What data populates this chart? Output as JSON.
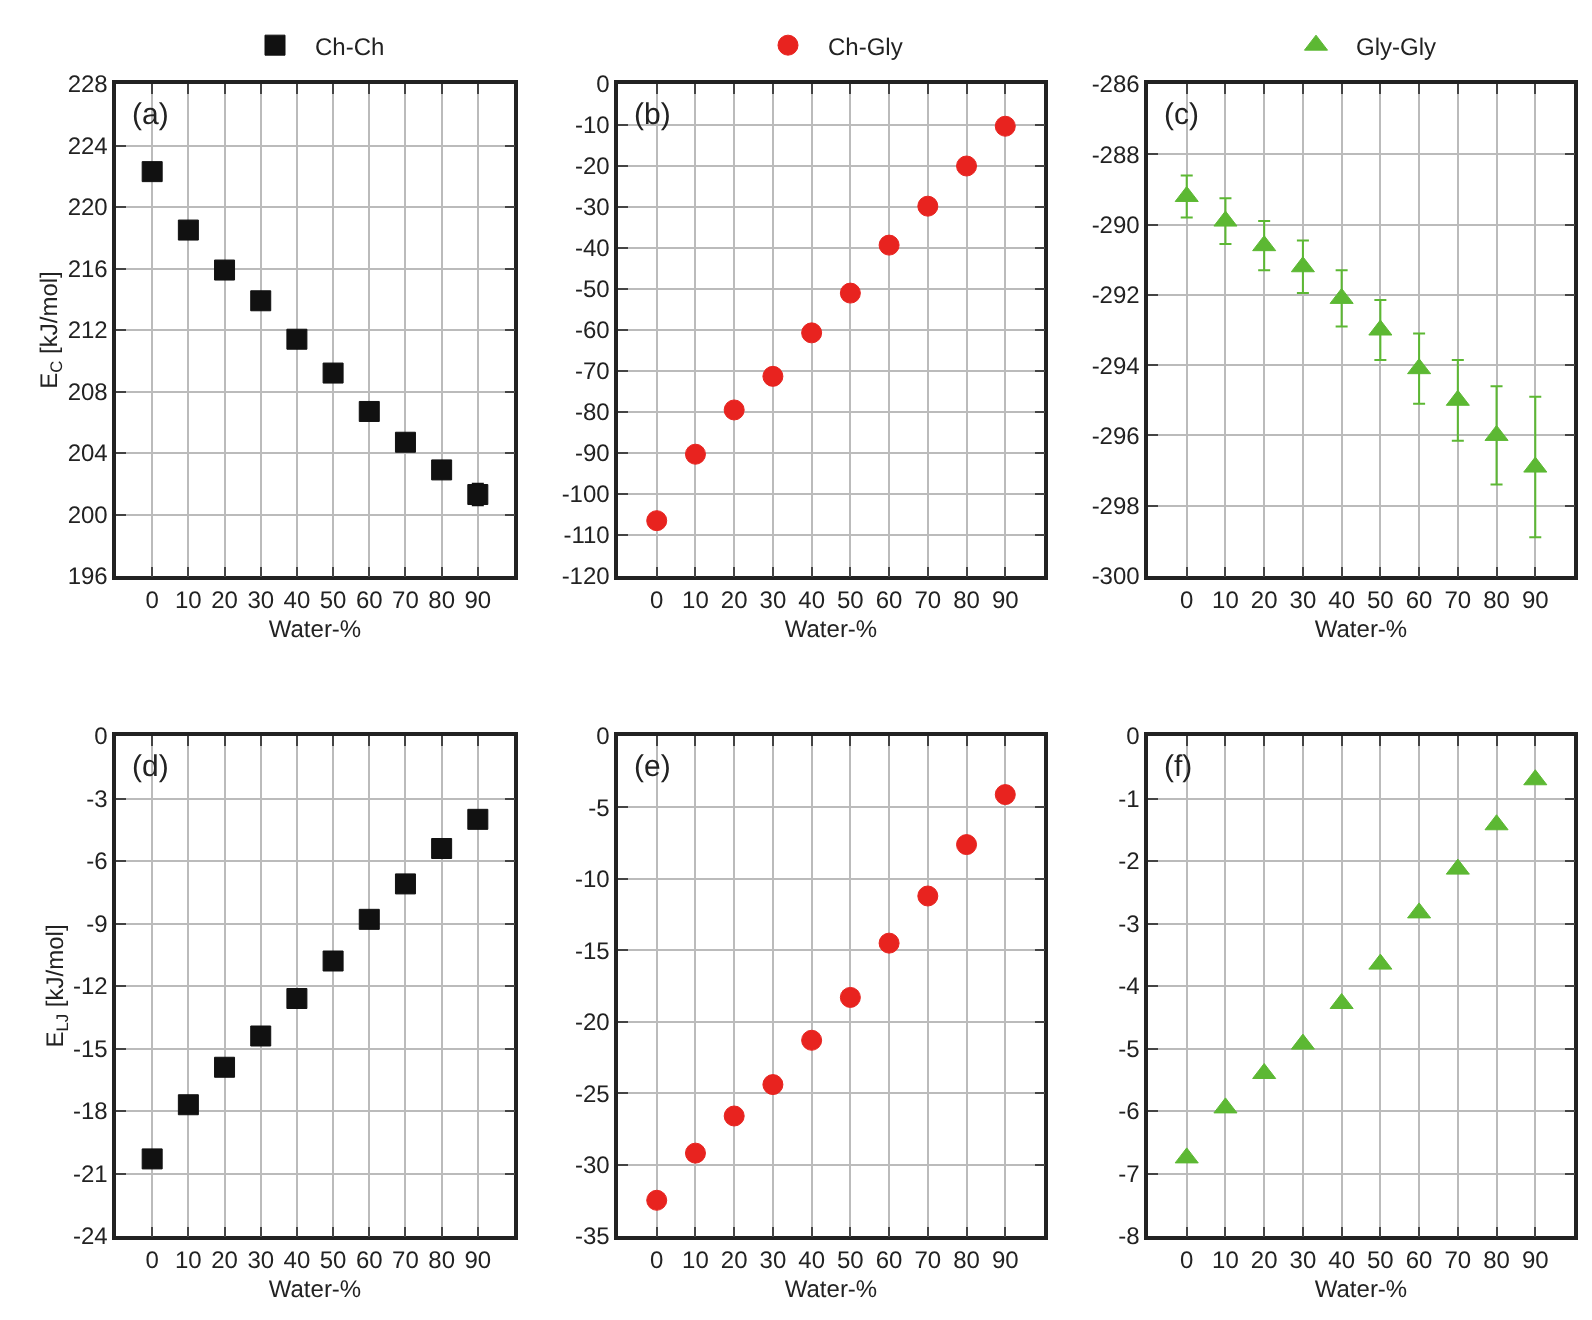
{
  "chart_data": [
    {
      "type": "scatter",
      "x": [
        0,
        10,
        20,
        30,
        40,
        50,
        60,
        70,
        80,
        90
      ],
      "xlabel": "Water-%",
      "ylabel": "E$_{C}$ [kJ/mol]",
      "xlim": [
        -10,
        100
      ],
      "xticks": [
        0,
        10,
        20,
        30,
        40,
        50,
        60,
        70,
        80,
        90
      ],
      "ylim": [
        196,
        228
      ],
      "yticks": [
        196,
        200,
        204,
        208,
        212,
        216,
        220,
        224,
        228
      ],
      "grid": true,
      "legend": "top",
      "marker": "square",
      "annotations": [
        "(a)"
      ],
      "series": [
        {
          "name": "Ch-Ch",
          "color": "#111111",
          "values": [
            222.3,
            218.5,
            215.9,
            213.9,
            211.4,
            209.2,
            206.7,
            204.7,
            202.9,
            201.3
          ],
          "errors": [
            null,
            null,
            null,
            null,
            null,
            null,
            null,
            null,
            null,
            0.7
          ]
        }
      ]
    },
    {
      "type": "scatter",
      "x": [
        0,
        10,
        20,
        30,
        40,
        50,
        60,
        70,
        80,
        90
      ],
      "xlabel": "Water-%",
      "xlim": [
        -10,
        100
      ],
      "xticks": [
        0,
        10,
        20,
        30,
        40,
        50,
        60,
        70,
        80,
        90
      ],
      "ylim": [
        -120,
        0
      ],
      "yticks": [
        -120,
        -110,
        -100,
        -90,
        -80,
        -70,
        -60,
        -50,
        -40,
        -30,
        -20,
        -10,
        0
      ],
      "grid": true,
      "legend": "top",
      "marker": "circle",
      "annotations": [
        "(b)"
      ],
      "series": [
        {
          "name": "Ch-Gly",
          "color": "#e8231f",
          "values": [
            -106.5,
            -90.3,
            -79.5,
            -71.3,
            -60.7,
            -51,
            -39.3,
            -29.8,
            -20,
            -10.3
          ]
        }
      ]
    },
    {
      "type": "scatter",
      "x": [
        0,
        10,
        20,
        30,
        40,
        50,
        60,
        70,
        80,
        90
      ],
      "xlabel": "Water-%",
      "xlim": [
        -10,
        100
      ],
      "xticks": [
        0,
        10,
        20,
        30,
        40,
        50,
        60,
        70,
        80,
        90
      ],
      "ylim": [
        -300,
        -286
      ],
      "yticks": [
        -300,
        -298,
        -296,
        -294,
        -292,
        -290,
        -288,
        -286
      ],
      "grid": true,
      "legend": "top",
      "marker": "triangle",
      "annotations": [
        "(c)"
      ],
      "series": [
        {
          "name": "Gly-Gly",
          "color": "#5cb833",
          "values": [
            -289.2,
            -289.9,
            -290.6,
            -291.2,
            -292.1,
            -293,
            -294.1,
            -295,
            -296,
            -296.9
          ],
          "errors": [
            0.6,
            0.65,
            0.7,
            0.75,
            0.8,
            0.85,
            1.0,
            1.15,
            1.4,
            2.0
          ]
        }
      ]
    },
    {
      "type": "scatter",
      "x": [
        0,
        10,
        20,
        30,
        40,
        50,
        60,
        70,
        80,
        90
      ],
      "xlabel": "Water-%",
      "ylabel": "E$_{LJ}$ [kJ/mol]",
      "xlim": [
        -10,
        100
      ],
      "xticks": [
        0,
        10,
        20,
        30,
        40,
        50,
        60,
        70,
        80,
        90
      ],
      "ylim": [
        -24,
        0
      ],
      "yticks": [
        -24,
        -21,
        -18,
        -15,
        -12,
        -9,
        -6,
        -3,
        0
      ],
      "grid": true,
      "marker": "square",
      "annotations": [
        "(d)"
      ],
      "series": [
        {
          "color": "#111111",
          "values": [
            -20.3,
            -17.7,
            -15.9,
            -14.4,
            -12.6,
            -10.8,
            -8.8,
            -7.1,
            -5.4,
            -4.0
          ]
        }
      ]
    },
    {
      "type": "scatter",
      "x": [
        0,
        10,
        20,
        30,
        40,
        50,
        60,
        70,
        80,
        90
      ],
      "xlabel": "Water-%",
      "xlim": [
        -10,
        100
      ],
      "xticks": [
        0,
        10,
        20,
        30,
        40,
        50,
        60,
        70,
        80,
        90
      ],
      "ylim": [
        -35,
        0
      ],
      "yticks": [
        -35,
        -30,
        -25,
        -20,
        -15,
        -10,
        -5,
        0
      ],
      "grid": true,
      "marker": "circle",
      "annotations": [
        "(e)"
      ],
      "series": [
        {
          "color": "#e8231f",
          "values": [
            -32.5,
            -29.2,
            -26.6,
            -24.4,
            -21.3,
            -18.3,
            -14.5,
            -11.2,
            -7.6,
            -4.1
          ]
        }
      ]
    },
    {
      "type": "scatter",
      "x": [
        0,
        10,
        20,
        30,
        40,
        50,
        60,
        70,
        80,
        90
      ],
      "xlabel": "Water-%",
      "xlim": [
        -10,
        100
      ],
      "xticks": [
        0,
        10,
        20,
        30,
        40,
        50,
        60,
        70,
        80,
        90
      ],
      "ylim": [
        -8,
        0
      ],
      "yticks": [
        -8,
        -7,
        -6,
        -5,
        -4,
        -3,
        -2,
        -1,
        0
      ],
      "grid": true,
      "marker": "triangle",
      "annotations": [
        "(f)"
      ],
      "series": [
        {
          "color": "#5cb833",
          "values": [
            -6.75,
            -5.95,
            -5.4,
            -4.93,
            -4.28,
            -3.65,
            -2.83,
            -2.13,
            -1.42,
            -0.7
          ]
        }
      ]
    }
  ]
}
